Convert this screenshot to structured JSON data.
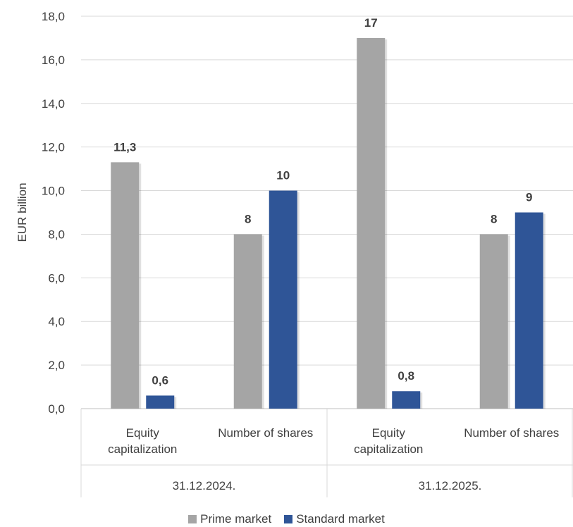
{
  "chart_data": {
    "type": "bar",
    "ylabel": "EUR billion",
    "ylim": [
      0,
      18
    ],
    "yticks": [
      "0,0",
      "2,0",
      "4,0",
      "6,0",
      "8,0",
      "10,0",
      "12,0",
      "14,0",
      "16,0",
      "18,0"
    ],
    "grid": true,
    "groups": [
      "31.12.2024.",
      "31.12.2025."
    ],
    "categories": [
      {
        "group": "31.12.2024.",
        "label": [
          "Equity",
          "capitalization"
        ]
      },
      {
        "group": "31.12.2024.",
        "label": [
          "Number of shares"
        ]
      },
      {
        "group": "31.12.2025.",
        "label": [
          "Equity",
          "capitalization"
        ]
      },
      {
        "group": "31.12.2025.",
        "label": [
          "Number of shares"
        ]
      }
    ],
    "series": [
      {
        "name": "Prime market",
        "color": "#a5a5a5",
        "values": [
          11.3,
          8,
          17,
          8
        ],
        "labels": [
          "11,3",
          "8",
          "17",
          "8"
        ]
      },
      {
        "name": "Standard market",
        "color": "#2f5597",
        "values": [
          0.6,
          10,
          0.8,
          9
        ],
        "labels": [
          "0,6",
          "10",
          "0,8",
          "9"
        ]
      }
    ],
    "legend_position": "bottom"
  }
}
